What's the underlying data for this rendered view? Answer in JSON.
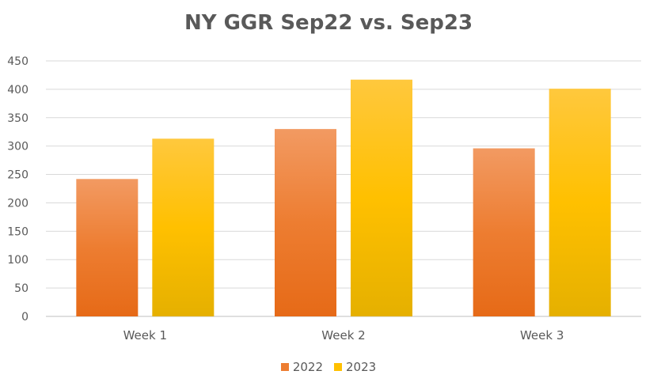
{
  "chart_data": {
    "type": "bar",
    "title": "NY GGR Sep22 vs. Sep23",
    "xlabel": "",
    "ylabel": "",
    "categories": [
      "Week 1",
      "Week 2",
      "Week 3"
    ],
    "series": [
      {
        "name": "2022",
        "values": [
          242,
          330,
          296
        ],
        "color": "#ED7D31",
        "color_light": "#F29A62",
        "color_dark": "#E66A17"
      },
      {
        "name": "2023",
        "values": [
          313,
          417,
          401
        ],
        "color": "#FFC000",
        "color_light": "#FFC83D",
        "color_dark": "#E5B000"
      }
    ],
    "ylim": [
      0,
      450
    ],
    "yticks": [
      0,
      50,
      100,
      150,
      200,
      250,
      300,
      350,
      400,
      450
    ],
    "grid": true,
    "legend": "bottom"
  }
}
